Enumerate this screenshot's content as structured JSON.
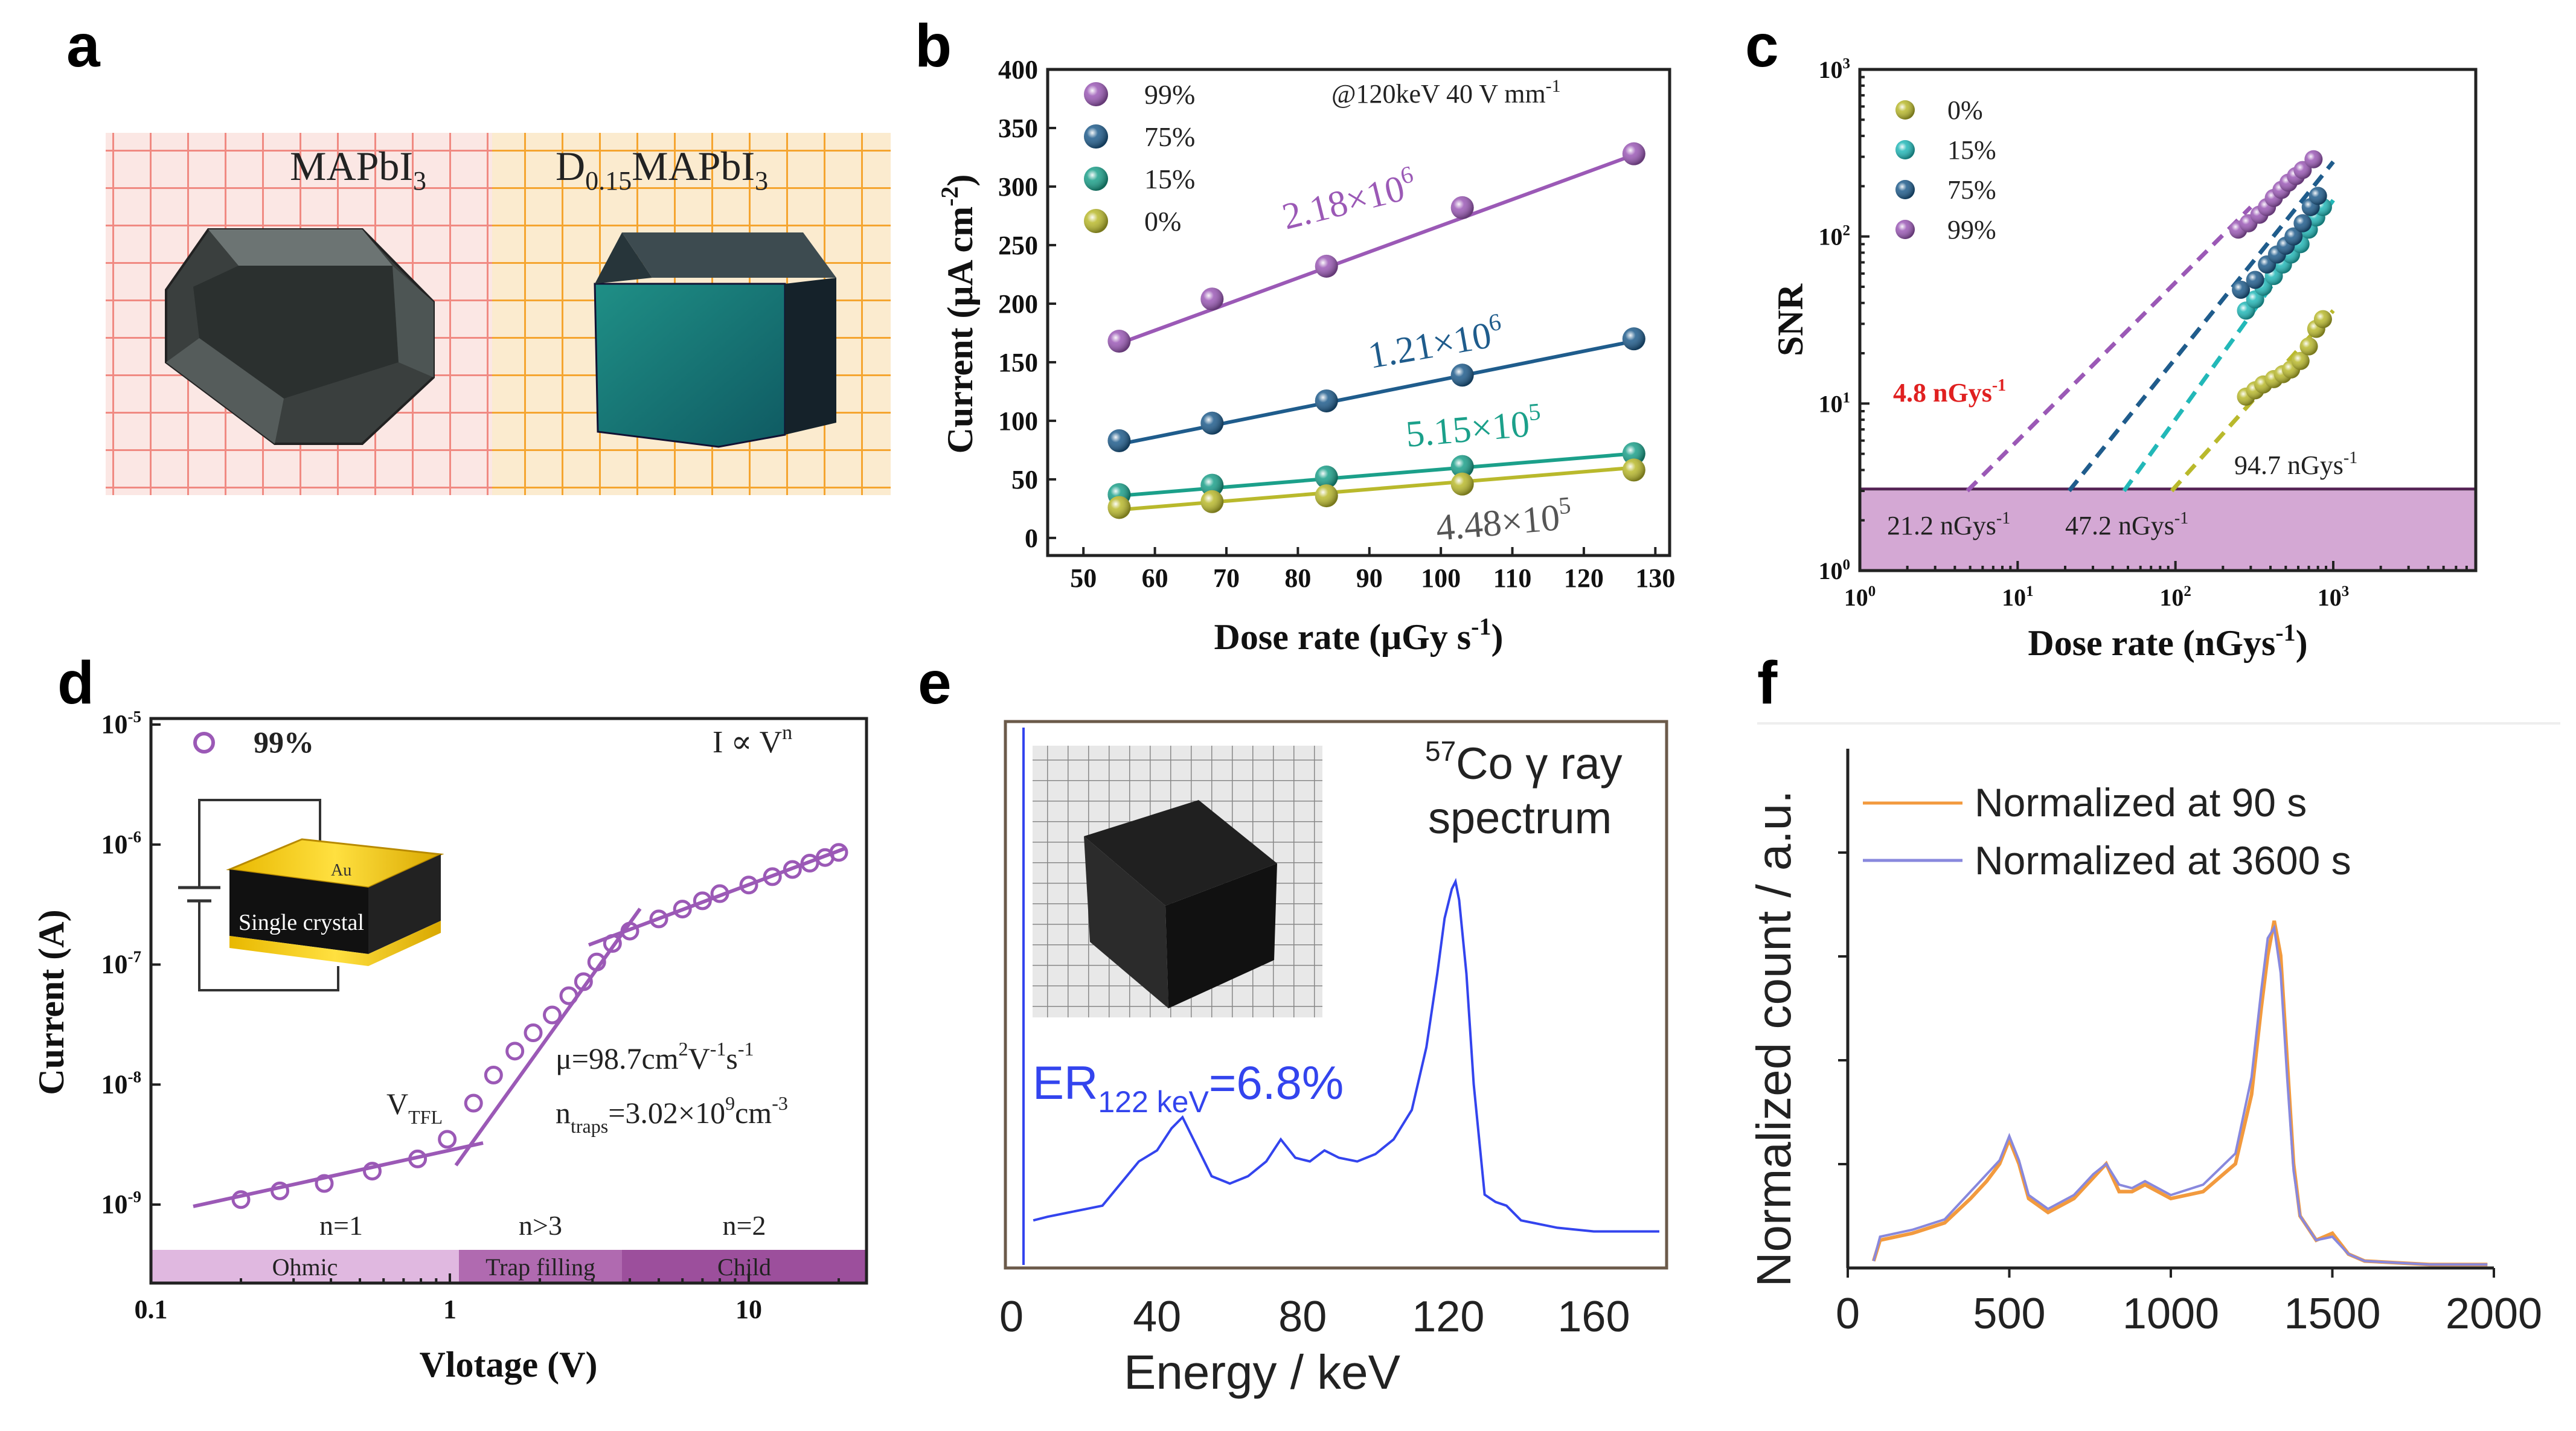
{
  "figure_colors": {
    "purple": "#9B59B6",
    "navy": "#1F5C8C",
    "teal": "#1BA08A",
    "olive": "#B9B92C",
    "cyan": "#22B8B8",
    "blue": "#3344EE",
    "orange": "#F29A3E",
    "lavender": "#8888DD",
    "band": "#CC99CC"
  },
  "panels": {
    "a": {
      "label": "a",
      "left_caption": "MAPbI",
      "left_sub": "3",
      "right_caption_pre": "D",
      "right_sub1": "0.15",
      "right_caption_mid": "MAPbI",
      "right_sub2": "3"
    },
    "b": {
      "label": "b",
      "annotation": "@120keV 40 V mm",
      "annotation_exp": "-1",
      "slopes": [
        {
          "mant": "2.18×10",
          "exp": "6",
          "color": "#9B59B6"
        },
        {
          "mant": "1.21×10",
          "exp": "6",
          "color": "#1F5C8C"
        },
        {
          "mant": "5.15×10",
          "exp": "5",
          "color": "#1BA08A"
        },
        {
          "mant": "4.48×10",
          "exp": "5",
          "color": "#555555"
        }
      ]
    },
    "c": {
      "label": "c",
      "annotations": [
        {
          "text": "4.8 nGys",
          "exp": "-1",
          "color": "#E02020"
        },
        {
          "text": "21.2 nGys",
          "exp": "-1",
          "color": "#222222"
        },
        {
          "text": "47.2 nGys",
          "exp": "-1",
          "color": "#222222"
        },
        {
          "text": "94.7 nGys",
          "exp": "-1",
          "color": "#222222"
        }
      ]
    },
    "d": {
      "label": "d",
      "legend": "99%",
      "law": "I ∝ V",
      "law_exp": "n",
      "mobility": "μ=98.7cm",
      "mob_e1": "2",
      "mob_mid": "V",
      "mob_e2": "-1",
      "mob_mid2": "s",
      "mob_e3": "-1",
      "ntraps": "n",
      "ntraps_sub": "traps",
      "ntraps_val": "=3.02×10",
      "ntraps_e1": "9",
      "ntraps_unit": "cm",
      "ntraps_e2": "-3",
      "vtfl": "V",
      "vtfl_sub": "TFL",
      "regions": [
        {
          "n": "n=1",
          "name": "Ohmic",
          "color": "#E0B8E0"
        },
        {
          "n": "n>3",
          "name": "Trap filling",
          "color": "#B06AB0"
        },
        {
          "n": "n=2",
          "name": "Child",
          "color": "#9C4F9C"
        }
      ],
      "inset_top": "Au",
      "inset_mid": "Single crystal"
    },
    "e": {
      "label": "e",
      "title_sup": "57",
      "title_line1": "Co γ ray",
      "title_line2": "spectrum",
      "er_main": "ER",
      "er_sub": "122 keV",
      "er_val": "=6.8%"
    },
    "f": {
      "label": "f"
    }
  },
  "chart_data": [
    {
      "panel": "b",
      "type": "scatter",
      "title": "",
      "xlabel": "Dose rate (μGy s-1)",
      "ylabel": "Current (μA cm-2)",
      "xlim": [
        45,
        132
      ],
      "ylim": [
        -15,
        400
      ],
      "xticks": [
        50,
        60,
        70,
        80,
        90,
        100,
        110,
        120,
        130
      ],
      "yticks": [
        0,
        50,
        100,
        150,
        200,
        250,
        300,
        350,
        400
      ],
      "series": [
        {
          "name": "99%",
          "color": "#9B59B6",
          "x": [
            55,
            68,
            84,
            103,
            127
          ],
          "y": [
            168,
            204,
            232,
            282,
            328
          ],
          "fit": [
            [
              55,
              166
            ],
            [
              127,
              327
            ]
          ]
        },
        {
          "name": "75%",
          "color": "#1F5C8C",
          "x": [
            55,
            68,
            84,
            103,
            127
          ],
          "y": [
            83,
            98,
            117,
            139,
            170
          ],
          "fit": [
            [
              55,
              80
            ],
            [
              127,
              168
            ]
          ]
        },
        {
          "name": "15%",
          "color": "#1BA08A",
          "x": [
            55,
            68,
            84,
            103,
            127
          ],
          "y": [
            37,
            45,
            52,
            61,
            72
          ],
          "fit": [
            [
              55,
              36
            ],
            [
              127,
              72
            ]
          ]
        },
        {
          "name": "0%",
          "color": "#B9B92C",
          "x": [
            55,
            68,
            84,
            103,
            127
          ],
          "y": [
            26,
            31,
            36,
            46,
            58
          ],
          "fit": [
            [
              55,
              24
            ],
            [
              127,
              60
            ]
          ]
        }
      ]
    },
    {
      "panel": "c",
      "type": "scatter",
      "xscale": "log",
      "yscale": "log",
      "xlabel": "Dose rate (nGys-1)",
      "ylabel": "SNR",
      "xlim": [
        1,
        8000
      ],
      "ylim": [
        1,
        1000
      ],
      "xticks": [
        {
          "base": "10",
          "exp": "0"
        },
        {
          "base": "10",
          "exp": "1"
        },
        {
          "base": "10",
          "exp": "2"
        },
        {
          "base": "10",
          "exp": "3"
        }
      ],
      "yticks": [
        {
          "base": "10",
          "exp": "0"
        },
        {
          "base": "10",
          "exp": "1"
        },
        {
          "base": "10",
          "exp": "2"
        },
        {
          "base": "10",
          "exp": "3"
        }
      ],
      "threshold_snr": 3,
      "series": [
        {
          "name": "0%",
          "color": "#B9B92C",
          "x": [
            280,
            320,
            360,
            420,
            480,
            540,
            620,
            700,
            780,
            860
          ],
          "y": [
            11,
            12,
            13,
            14,
            15,
            16,
            18,
            22,
            28,
            32
          ],
          "fit": [
            [
              94.7,
              3
            ],
            [
              1000,
              36
            ]
          ]
        },
        {
          "name": "15%",
          "color": "#22B8B8",
          "x": [
            280,
            320,
            360,
            420,
            480,
            540,
            620,
            700,
            780,
            860
          ],
          "y": [
            36,
            42,
            50,
            58,
            68,
            78,
            90,
            110,
            130,
            150
          ],
          "fit": [
            [
              47.2,
              3
            ],
            [
              1000,
              165
            ]
          ]
        },
        {
          "name": "75%",
          "color": "#1F5C8C",
          "x": [
            260,
            320,
            380,
            440,
            500,
            560,
            640,
            720,
            800
          ],
          "y": [
            48,
            55,
            68,
            78,
            88,
            100,
            120,
            150,
            175
          ],
          "fit": [
            [
              21.2,
              3
            ],
            [
              1000,
              280
            ]
          ]
        },
        {
          "name": "99%",
          "color": "#9B59B6",
          "x": [
            250,
            290,
            340,
            380,
            420,
            470,
            520,
            580,
            640,
            750
          ],
          "y": [
            110,
            120,
            135,
            150,
            170,
            190,
            210,
            230,
            250,
            290
          ],
          "fit": [
            [
              4.8,
              3
            ],
            [
              300,
              150
            ]
          ]
        }
      ]
    },
    {
      "panel": "d",
      "type": "scatter",
      "xscale": "log",
      "yscale": "log",
      "xlabel": "Vlotage (V)",
      "ylabel": "Current (A)",
      "xticks": [
        "0.1",
        "1",
        "10"
      ],
      "yticks": [
        {
          "base": "10",
          "exp": "-9"
        },
        {
          "base": "10",
          "exp": "-8"
        },
        {
          "base": "10",
          "exp": "-7"
        },
        {
          "base": "10",
          "exp": "-6"
        },
        {
          "base": "10",
          "exp": "-5"
        }
      ],
      "series": [
        {
          "name": "99%",
          "color": "#9B59B6",
          "x": [
            0.2,
            0.27,
            0.38,
            0.55,
            0.78,
            0.98,
            1.2,
            1.4,
            1.65,
            1.9,
            2.2,
            2.5,
            2.8,
            3.1,
            3.5,
            4,
            5,
            6,
            7,
            8,
            10,
            12,
            14,
            16,
            18,
            20
          ],
          "y": [
            1.1e-09,
            1.3e-09,
            1.5e-09,
            1.9e-09,
            2.4e-09,
            3.5e-09,
            7e-09,
            1.2e-08,
            1.9e-08,
            2.7e-08,
            3.8e-08,
            5.5e-08,
            7.2e-08,
            1.05e-07,
            1.5e-07,
            1.9e-07,
            2.4e-07,
            2.9e-07,
            3.4e-07,
            3.9e-07,
            4.6e-07,
            5.4e-07,
            6.2e-07,
            7e-07,
            7.8e-07,
            8.6e-07
          ]
        }
      ]
    },
    {
      "panel": "e",
      "type": "line",
      "xlabel": "Energy / keV",
      "ylabel": "",
      "xlim": [
        0,
        180
      ],
      "xticks": [
        0,
        40,
        80,
        120,
        160
      ],
      "series": [
        {
          "name": "57Co spectrum",
          "color": "#3344EE",
          "x": [
            6,
            10,
            15,
            20,
            25,
            30,
            35,
            40,
            44,
            47,
            50,
            55,
            60,
            65,
            70,
            74,
            78,
            82,
            86,
            90,
            95,
            100,
            105,
            110,
            114,
            117,
            119,
            121,
            122,
            123,
            125,
            127,
            130,
            133,
            136,
            140,
            145,
            150,
            160,
            170,
            178
          ],
          "y": [
            0.08,
            0.09,
            0.1,
            0.11,
            0.12,
            0.18,
            0.24,
            0.27,
            0.33,
            0.36,
            0.3,
            0.2,
            0.18,
            0.2,
            0.24,
            0.3,
            0.25,
            0.24,
            0.27,
            0.25,
            0.24,
            0.26,
            0.3,
            0.38,
            0.55,
            0.75,
            0.9,
            0.98,
            1.0,
            0.95,
            0.75,
            0.45,
            0.15,
            0.13,
            0.12,
            0.08,
            0.07,
            0.06,
            0.05,
            0.05,
            0.05
          ]
        }
      ]
    },
    {
      "panel": "f",
      "type": "line",
      "xlabel": "",
      "ylabel": "Normalized count / a.u.",
      "xlim": [
        0,
        2000
      ],
      "xticks": [
        0,
        500,
        1000,
        1500,
        2000
      ],
      "series": [
        {
          "name": "Normalized at 90 s",
          "color": "#F29A3E",
          "x": [
            80,
            100,
            200,
            300,
            380,
            430,
            470,
            500,
            530,
            560,
            620,
            700,
            760,
            800,
            840,
            880,
            920,
            1000,
            1100,
            1200,
            1250,
            1280,
            1300,
            1320,
            1340,
            1360,
            1380,
            1400,
            1450,
            1500,
            1550,
            1600,
            1800,
            1980
          ],
          "y": [
            0.02,
            0.08,
            0.1,
            0.13,
            0.2,
            0.25,
            0.3,
            0.37,
            0.3,
            0.2,
            0.16,
            0.2,
            0.26,
            0.3,
            0.22,
            0.22,
            0.24,
            0.2,
            0.22,
            0.3,
            0.5,
            0.75,
            0.9,
            1.0,
            0.9,
            0.6,
            0.3,
            0.15,
            0.08,
            0.1,
            0.04,
            0.02,
            0.01,
            0.01
          ]
        },
        {
          "name": "Normalized at 3600 s",
          "color": "#8888DD",
          "x": [
            80,
            100,
            200,
            300,
            380,
            430,
            470,
            500,
            530,
            560,
            620,
            700,
            760,
            800,
            840,
            880,
            920,
            1000,
            1100,
            1200,
            1250,
            1280,
            1300,
            1320,
            1340,
            1360,
            1380,
            1400,
            1450,
            1500,
            1550,
            1600,
            1800,
            1980
          ],
          "y": [
            0.02,
            0.09,
            0.11,
            0.14,
            0.22,
            0.27,
            0.31,
            0.38,
            0.31,
            0.21,
            0.17,
            0.21,
            0.27,
            0.3,
            0.24,
            0.23,
            0.25,
            0.21,
            0.24,
            0.33,
            0.55,
            0.8,
            0.95,
            0.98,
            0.85,
            0.55,
            0.28,
            0.15,
            0.08,
            0.09,
            0.04,
            0.02,
            0.01,
            0.01
          ]
        }
      ]
    }
  ]
}
